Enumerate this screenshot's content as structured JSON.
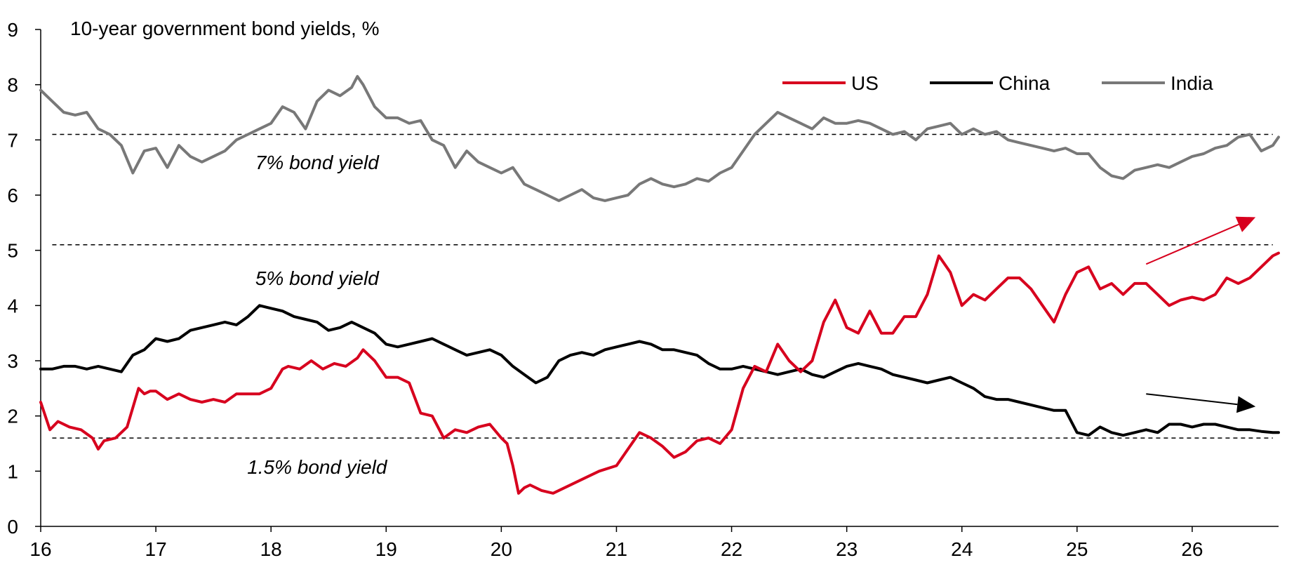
{
  "chart_data": {
    "type": "line",
    "title": "10-year government bond yields, %",
    "xlabel": "",
    "ylabel": "",
    "xlim": [
      16,
      26.75
    ],
    "ylim": [
      0,
      9
    ],
    "x_ticks": [
      16,
      17,
      18,
      19,
      20,
      21,
      22,
      23,
      24,
      25,
      26
    ],
    "x_tick_labels": [
      "16",
      "17",
      "18",
      "19",
      "20",
      "21",
      "22",
      "23",
      "24",
      "25",
      "26"
    ],
    "y_ticks": [
      0,
      1,
      2,
      3,
      4,
      5,
      6,
      7,
      8,
      9
    ],
    "y_tick_labels": [
      "0",
      "1",
      "2",
      "3",
      "4",
      "5",
      "6",
      "7",
      "8",
      "9"
    ],
    "grid": false,
    "legend_position": "top-right",
    "legend": [
      {
        "name": "US",
        "color": "#d7001e"
      },
      {
        "name": "China",
        "color": "#000000"
      },
      {
        "name": "India",
        "color": "#787878"
      }
    ],
    "series": [
      {
        "name": "US",
        "color": "#d7001e",
        "x": [
          16.0,
          16.08,
          16.15,
          16.25,
          16.35,
          16.45,
          16.5,
          16.55,
          16.65,
          16.75,
          16.85,
          16.9,
          16.95,
          17.0,
          17.1,
          17.2,
          17.3,
          17.4,
          17.5,
          17.6,
          17.7,
          17.8,
          17.9,
          18.0,
          18.1,
          18.15,
          18.25,
          18.35,
          18.45,
          18.55,
          18.65,
          18.75,
          18.8,
          18.9,
          19.0,
          19.1,
          19.2,
          19.3,
          19.4,
          19.5,
          19.6,
          19.7,
          19.8,
          19.9,
          20.0,
          20.05,
          20.1,
          20.15,
          20.2,
          20.25,
          20.35,
          20.45,
          20.55,
          20.65,
          20.75,
          20.85,
          21.0,
          21.1,
          21.2,
          21.3,
          21.4,
          21.5,
          21.6,
          21.7,
          21.8,
          21.9,
          22.0,
          22.1,
          22.2,
          22.3,
          22.4,
          22.5,
          22.6,
          22.7,
          22.8,
          22.9,
          23.0,
          23.1,
          23.2,
          23.3,
          23.4,
          23.5,
          23.6,
          23.7,
          23.8,
          23.9,
          24.0,
          24.1,
          24.2,
          24.3,
          24.4,
          24.5,
          24.6,
          24.7,
          24.8,
          24.9,
          25.0,
          25.1,
          25.2,
          25.3,
          25.4,
          25.5,
          25.6,
          25.7,
          25.8,
          25.9,
          26.0,
          26.1,
          26.2,
          26.3,
          26.4,
          26.5,
          26.6,
          26.7,
          26.75
        ],
        "values": [
          2.25,
          1.75,
          1.9,
          1.8,
          1.75,
          1.6,
          1.4,
          1.55,
          1.6,
          1.8,
          2.5,
          2.4,
          2.45,
          2.45,
          2.3,
          2.4,
          2.3,
          2.25,
          2.3,
          2.25,
          2.4,
          2.4,
          2.4,
          2.5,
          2.85,
          2.9,
          2.85,
          3.0,
          2.85,
          2.95,
          2.9,
          3.05,
          3.2,
          3.0,
          2.7,
          2.7,
          2.6,
          2.05,
          2.0,
          1.6,
          1.75,
          1.7,
          1.8,
          1.85,
          1.6,
          1.5,
          1.1,
          0.6,
          0.7,
          0.75,
          0.65,
          0.6,
          0.7,
          0.8,
          0.9,
          1.0,
          1.1,
          1.4,
          1.7,
          1.6,
          1.45,
          1.25,
          1.35,
          1.55,
          1.6,
          1.5,
          1.75,
          2.5,
          2.9,
          2.8,
          3.3,
          3.0,
          2.8,
          3.0,
          3.7,
          4.1,
          3.6,
          3.5,
          3.9,
          3.5,
          3.5,
          3.8,
          3.8,
          4.2,
          4.9,
          4.6,
          4.0,
          4.2,
          4.1,
          4.3,
          4.5,
          4.5,
          4.3,
          4.0,
          3.7,
          4.2,
          4.6,
          4.7,
          4.3,
          4.4,
          4.2,
          4.4,
          4.4,
          4.2,
          4.0,
          4.1,
          4.15,
          4.1,
          4.2,
          4.5,
          4.4,
          4.5,
          4.7,
          4.9,
          4.95
        ]
      },
      {
        "name": "China",
        "color": "#000000",
        "x": [
          16.0,
          16.1,
          16.2,
          16.3,
          16.4,
          16.5,
          16.6,
          16.7,
          16.8,
          16.9,
          17.0,
          17.1,
          17.2,
          17.3,
          17.4,
          17.5,
          17.6,
          17.7,
          17.8,
          17.9,
          18.0,
          18.1,
          18.2,
          18.3,
          18.4,
          18.5,
          18.6,
          18.7,
          18.8,
          18.9,
          19.0,
          19.1,
          19.2,
          19.3,
          19.4,
          19.5,
          19.6,
          19.7,
          19.8,
          19.9,
          20.0,
          20.1,
          20.2,
          20.3,
          20.4,
          20.5,
          20.6,
          20.7,
          20.8,
          20.9,
          21.0,
          21.1,
          21.2,
          21.3,
          21.4,
          21.5,
          21.6,
          21.7,
          21.8,
          21.9,
          22.0,
          22.1,
          22.2,
          22.3,
          22.4,
          22.5,
          22.6,
          22.7,
          22.8,
          22.9,
          23.0,
          23.1,
          23.2,
          23.3,
          23.4,
          23.5,
          23.6,
          23.7,
          23.8,
          23.9,
          24.0,
          24.1,
          24.2,
          24.3,
          24.4,
          24.5,
          24.6,
          24.7,
          24.8,
          24.9,
          25.0,
          25.1,
          25.2,
          25.3,
          25.4,
          25.5,
          25.6,
          25.7,
          25.8,
          25.9,
          26.0,
          26.1,
          26.2,
          26.3,
          26.4,
          26.5,
          26.6,
          26.7,
          26.75
        ],
        "values": [
          2.85,
          2.85,
          2.9,
          2.9,
          2.85,
          2.9,
          2.85,
          2.8,
          3.1,
          3.2,
          3.4,
          3.35,
          3.4,
          3.55,
          3.6,
          3.65,
          3.7,
          3.65,
          3.8,
          4.0,
          3.95,
          3.9,
          3.8,
          3.75,
          3.7,
          3.55,
          3.6,
          3.7,
          3.6,
          3.5,
          3.3,
          3.25,
          3.3,
          3.35,
          3.4,
          3.3,
          3.2,
          3.1,
          3.15,
          3.2,
          3.1,
          2.9,
          2.75,
          2.6,
          2.7,
          3.0,
          3.1,
          3.15,
          3.1,
          3.2,
          3.25,
          3.3,
          3.35,
          3.3,
          3.2,
          3.2,
          3.15,
          3.1,
          2.95,
          2.85,
          2.85,
          2.9,
          2.85,
          2.8,
          2.75,
          2.8,
          2.85,
          2.75,
          2.7,
          2.8,
          2.9,
          2.95,
          2.9,
          2.85,
          2.75,
          2.7,
          2.65,
          2.6,
          2.65,
          2.7,
          2.6,
          2.5,
          2.35,
          2.3,
          2.3,
          2.25,
          2.2,
          2.15,
          2.1,
          2.1,
          1.7,
          1.65,
          1.8,
          1.7,
          1.65,
          1.7,
          1.75,
          1.7,
          1.85,
          1.85,
          1.8,
          1.85,
          1.85,
          1.8,
          1.75,
          1.75,
          1.72,
          1.7,
          1.7
        ]
      },
      {
        "name": "India",
        "color": "#787878",
        "x": [
          16.0,
          16.1,
          16.2,
          16.3,
          16.4,
          16.5,
          16.6,
          16.7,
          16.8,
          16.9,
          17.0,
          17.1,
          17.2,
          17.3,
          17.4,
          17.5,
          17.6,
          17.7,
          17.8,
          17.9,
          18.0,
          18.1,
          18.2,
          18.3,
          18.4,
          18.5,
          18.6,
          18.7,
          18.75,
          18.8,
          18.9,
          19.0,
          19.1,
          19.2,
          19.3,
          19.4,
          19.5,
          19.6,
          19.7,
          19.8,
          19.9,
          20.0,
          20.1,
          20.2,
          20.3,
          20.4,
          20.5,
          20.6,
          20.7,
          20.8,
          20.9,
          21.0,
          21.1,
          21.2,
          21.3,
          21.4,
          21.5,
          21.6,
          21.7,
          21.8,
          21.9,
          22.0,
          22.1,
          22.2,
          22.3,
          22.4,
          22.5,
          22.6,
          22.7,
          22.8,
          22.9,
          23.0,
          23.1,
          23.2,
          23.3,
          23.4,
          23.5,
          23.6,
          23.7,
          23.8,
          23.9,
          24.0,
          24.1,
          24.2,
          24.3,
          24.4,
          24.5,
          24.6,
          24.7,
          24.8,
          24.9,
          25.0,
          25.1,
          25.2,
          25.3,
          25.4,
          25.5,
          25.6,
          25.7,
          25.8,
          25.9,
          26.0,
          26.1,
          26.2,
          26.3,
          26.4,
          26.5,
          26.6,
          26.7,
          26.75
        ],
        "values": [
          7.9,
          7.7,
          7.5,
          7.45,
          7.5,
          7.2,
          7.1,
          6.9,
          6.4,
          6.8,
          6.85,
          6.5,
          6.9,
          6.7,
          6.6,
          6.7,
          6.8,
          7.0,
          7.1,
          7.2,
          7.3,
          7.6,
          7.5,
          7.2,
          7.7,
          7.9,
          7.8,
          7.95,
          8.15,
          8.0,
          7.6,
          7.4,
          7.4,
          7.3,
          7.35,
          7.0,
          6.9,
          6.5,
          6.8,
          6.6,
          6.5,
          6.4,
          6.5,
          6.2,
          6.1,
          6.0,
          5.9,
          6.0,
          6.1,
          5.95,
          5.9,
          5.95,
          6.0,
          6.2,
          6.3,
          6.2,
          6.15,
          6.2,
          6.3,
          6.25,
          6.4,
          6.5,
          6.8,
          7.1,
          7.3,
          7.5,
          7.4,
          7.3,
          7.2,
          7.4,
          7.3,
          7.3,
          7.35,
          7.3,
          7.2,
          7.1,
          7.15,
          7.0,
          7.2,
          7.25,
          7.3,
          7.1,
          7.2,
          7.1,
          7.15,
          7.0,
          6.95,
          6.9,
          6.85,
          6.8,
          6.85,
          6.75,
          6.75,
          6.5,
          6.35,
          6.3,
          6.45,
          6.5,
          6.55,
          6.5,
          6.6,
          6.7,
          6.75,
          6.85,
          6.9,
          7.05,
          7.1,
          6.8,
          6.9,
          7.05
        ]
      }
    ],
    "reference_lines": [
      {
        "y": 7.1,
        "label": "7% bond yield",
        "label_x": 18.4,
        "label_y": 6.6
      },
      {
        "y": 5.1,
        "label": "5% bond yield",
        "label_x": 18.4,
        "label_y": 4.5
      },
      {
        "y": 1.6,
        "label": "1.5% bond yield",
        "label_x": 18.4,
        "label_y": 1.08
      }
    ],
    "annotations": [
      {
        "type": "arrow",
        "color": "#d7001e",
        "from": [
          25.6,
          4.75
        ],
        "to": [
          26.55,
          5.6
        ]
      },
      {
        "type": "arrow",
        "color": "#000000",
        "from": [
          25.6,
          2.4
        ],
        "to": [
          26.55,
          2.17
        ]
      }
    ]
  }
}
